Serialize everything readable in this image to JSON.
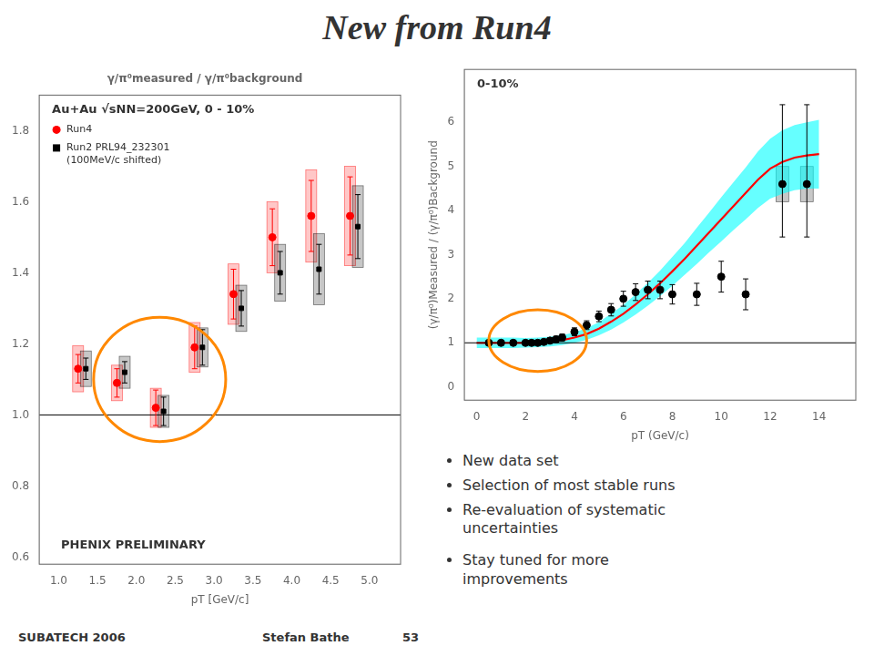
{
  "title": "New from Run4",
  "annotations": {
    "bullets": [
      "New data set",
      "Selection of most stable runs",
      "Re-evaluation of systematic\nuncertainties",
      "Stay tuned for more\nimprovements"
    ],
    "footer": [
      "SUBATECH 2006",
      "Stefan Bathe",
      "53"
    ]
  },
  "chart_data": [
    {
      "type": "scatter",
      "title": "γ/π⁰measured / γ/π⁰background",
      "x_label": "pT [GeV/c]",
      "xlim": [
        0.75,
        5.4
      ],
      "ylim": [
        0.58,
        1.9
      ],
      "xticks": [
        {
          "value": 1,
          "label": "1.0"
        },
        1.5,
        {
          "value": 2,
          "label": "2.0"
        },
        2.5,
        {
          "value": 3,
          "label": "3.0"
        },
        3.5,
        {
          "value": 4,
          "label": "4.0"
        },
        4.5,
        {
          "value": 5,
          "label": "5.0"
        }
      ],
      "yticks": [
        0.6,
        0.8,
        {
          "value": 1.0,
          "label": "1.0"
        },
        1.2,
        1.4,
        1.6,
        1.8
      ],
      "grid": false,
      "legend": "upper left",
      "hline": 1.0,
      "annotations": [
        {
          "text": "Au+Au √sNN=200GeV, 0 - 10%"
        },
        {
          "text": "PHENIX PRELIMINARY"
        },
        {
          "type": "ellipse",
          "cx": 2.3,
          "cy": 1.1,
          "width": 1.7,
          "height": 0.35,
          "color": "#ff8800"
        }
      ],
      "series": [
        {
          "name": "Run4",
          "color": "#ff0000",
          "marker": "circle",
          "x": [
            1.25,
            1.75,
            2.25,
            2.75,
            3.25,
            3.75,
            4.25,
            4.75
          ],
          "values": [
            1.13,
            1.09,
            1.02,
            1.19,
            1.34,
            1.5,
            1.56,
            1.56
          ],
          "yerr": [
            0.04,
            0.04,
            0.05,
            0.06,
            0.07,
            0.08,
            0.1,
            0.11
          ],
          "sys_height": [
            0.13,
            0.1,
            0.11,
            0.14,
            0.17,
            0.2,
            0.26,
            0.28
          ]
        },
        {
          "name": "Run2 PRL94_232301\n(100MeV/c shifted)",
          "color": "#000000",
          "marker": "square",
          "x": [
            1.35,
            1.85,
            2.35,
            2.85,
            3.35,
            3.85,
            4.35,
            4.85
          ],
          "values": [
            1.13,
            1.12,
            1.01,
            1.19,
            1.3,
            1.4,
            1.41,
            1.53
          ],
          "yerr": [
            0.03,
            0.03,
            0.04,
            0.05,
            0.05,
            0.06,
            0.07,
            0.09
          ],
          "sys_height": [
            0.1,
            0.09,
            0.09,
            0.11,
            0.13,
            0.16,
            0.2,
            0.23
          ]
        }
      ]
    },
    {
      "type": "scatter",
      "x_label": "pT (GeV/c)",
      "y_label": "(γ/π⁰)Measured / (γ/π⁰)Background",
      "xlim": [
        -0.5,
        15.5
      ],
      "ylim": [
        -0.3,
        7.2
      ],
      "xticks": [
        0,
        2,
        4,
        6,
        8,
        10,
        12,
        14
      ],
      "yticks": [
        0,
        1,
        2,
        3,
        4,
        5,
        6
      ],
      "grid": false,
      "hline": 1.0,
      "annotations": [
        {
          "text": "0-10%"
        },
        {
          "type": "ellipse",
          "cx": 2.5,
          "cy": 1.05,
          "width": 4.0,
          "height": 1.4,
          "color": "#ff8800"
        }
      ],
      "series": [
        {
          "type": "band",
          "color": "#00ffff",
          "x": [
            0.0,
            0.5,
            1.0,
            1.5,
            2.0,
            2.5,
            3.0,
            3.5,
            4.0,
            4.5,
            5.0,
            5.5,
            6.0,
            6.5,
            7.0,
            7.5,
            8.0,
            8.5,
            9.0,
            9.5,
            10.0,
            10.5,
            11.0,
            11.5,
            12.0,
            12.5,
            13.0,
            13.5,
            14.0
          ],
          "low": [
            0.88,
            0.88,
            0.88,
            0.88,
            0.89,
            0.9,
            0.92,
            0.95,
            1.0,
            1.07,
            1.17,
            1.3,
            1.46,
            1.64,
            1.84,
            2.06,
            2.29,
            2.54,
            2.79,
            3.05,
            3.3,
            3.56,
            3.8,
            4.06,
            4.27,
            4.38,
            4.46,
            4.5,
            4.5
          ],
          "high": [
            1.12,
            1.12,
            1.12,
            1.12,
            1.11,
            1.12,
            1.14,
            1.17,
            1.24,
            1.33,
            1.47,
            1.66,
            1.86,
            2.1,
            2.36,
            2.64,
            2.95,
            3.26,
            3.61,
            3.95,
            4.3,
            4.64,
            4.98,
            5.34,
            5.63,
            5.82,
            5.94,
            6.0,
            6.06
          ]
        },
        {
          "type": "line",
          "color": "#ff0000",
          "x": [
            0.0,
            0.5,
            1.0,
            1.5,
            2.0,
            2.5,
            3.0,
            3.5,
            4.0,
            4.5,
            5.0,
            5.5,
            6.0,
            6.5,
            7.0,
            7.5,
            8.0,
            8.5,
            9.0,
            9.5,
            10.0,
            10.5,
            11.0,
            11.5,
            12.0,
            12.5,
            13.0,
            13.5,
            14.0
          ],
          "values": [
            1.0,
            1.0,
            1.0,
            1.0,
            1.0,
            1.01,
            1.03,
            1.06,
            1.12,
            1.2,
            1.32,
            1.48,
            1.66,
            1.87,
            2.1,
            2.35,
            2.62,
            2.9,
            3.2,
            3.5,
            3.8,
            4.1,
            4.4,
            4.7,
            4.95,
            5.1,
            5.2,
            5.25,
            5.28
          ]
        },
        {
          "type": "scatter",
          "color": "#000000",
          "marker": "circle",
          "x": [
            0.5,
            1.0,
            1.5,
            2.0,
            2.25,
            2.5,
            2.75,
            3.0,
            3.25,
            3.5,
            4.0,
            4.5,
            5.0,
            5.5,
            6.0,
            6.5,
            7.0,
            7.5,
            8.0,
            9.0,
            10.0,
            11.0,
            12.5,
            13.5
          ],
          "values": [
            1.0,
            1.0,
            1.0,
            1.0,
            1.0,
            1.0,
            1.02,
            1.05,
            1.08,
            1.12,
            1.25,
            1.4,
            1.6,
            1.75,
            2.0,
            2.15,
            2.2,
            2.2,
            2.1,
            2.1,
            2.5,
            2.1,
            4.6,
            4.6
          ],
          "yerr_lo": [
            0.05,
            0.05,
            0.05,
            0.05,
            0.05,
            0.05,
            0.06,
            0.06,
            0.07,
            0.08,
            0.09,
            0.1,
            0.12,
            0.14,
            0.17,
            0.19,
            0.2,
            0.2,
            0.22,
            0.25,
            0.35,
            0.35,
            1.2,
            1.2
          ],
          "yerr_hi": [
            0.05,
            0.05,
            0.05,
            0.05,
            0.05,
            0.05,
            0.06,
            0.06,
            0.07,
            0.08,
            0.09,
            0.1,
            0.12,
            0.14,
            0.17,
            0.19,
            0.2,
            0.2,
            0.22,
            0.25,
            0.35,
            0.35,
            1.8,
            1.8
          ],
          "sys": [
            null,
            null,
            null,
            null,
            null,
            null,
            null,
            null,
            null,
            null,
            null,
            null,
            null,
            null,
            null,
            null,
            null,
            null,
            null,
            null,
            null,
            null,
            0.4,
            0.4
          ]
        }
      ]
    }
  ]
}
